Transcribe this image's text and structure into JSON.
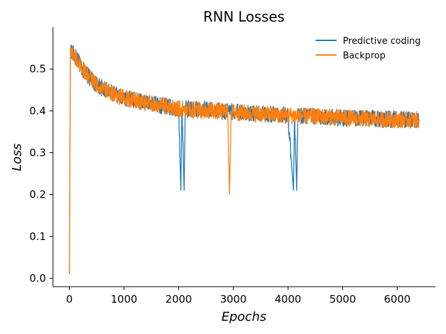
{
  "chart_data": {
    "type": "line",
    "title": "RNN Losses",
    "xlabel": "Epochs",
    "ylabel": "Loss",
    "xlim": [
      -300,
      6700
    ],
    "ylim": [
      -0.02,
      0.6
    ],
    "x_ticks": [
      0,
      1000,
      2000,
      3000,
      4000,
      5000,
      6000
    ],
    "x_tick_labels": [
      "0",
      "1000",
      "2000",
      "3000",
      "4000",
      "5000",
      "6000"
    ],
    "y_ticks": [
      0.0,
      0.1,
      0.2,
      0.3,
      0.4,
      0.5
    ],
    "y_tick_labels": [
      "0.0",
      "0.1",
      "0.2",
      "0.3",
      "0.4",
      "0.5"
    ],
    "grid": false,
    "legend_position": "top-right",
    "series": [
      {
        "name": "Predictive coding",
        "color": "#1f77b4",
        "x": [
          0,
          20,
          50,
          100,
          200,
          300,
          400,
          500,
          700,
          900,
          1200,
          1500,
          1800,
          2000,
          2040,
          2060,
          2100,
          2120,
          2300,
          2500,
          2800,
          3000,
          3300,
          3600,
          4000,
          4100,
          4120,
          4160,
          4180,
          4300,
          4600,
          5000,
          5400,
          5800,
          6100,
          6400
        ],
        "y": [
          0.01,
          0.55,
          0.54,
          0.53,
          0.51,
          0.49,
          0.475,
          0.462,
          0.447,
          0.435,
          0.425,
          0.417,
          0.41,
          0.405,
          0.21,
          0.405,
          0.21,
          0.405,
          0.405,
          0.405,
          0.398,
          0.398,
          0.395,
          0.392,
          0.39,
          0.21,
          0.39,
          0.21,
          0.39,
          0.388,
          0.386,
          0.383,
          0.382,
          0.38,
          0.379,
          0.378
        ],
        "noise_amplitude": 0.02
      },
      {
        "name": "Backprop",
        "color": "#ff7f0e",
        "x": [
          0,
          20,
          50,
          100,
          200,
          300,
          400,
          500,
          700,
          900,
          1200,
          1500,
          1800,
          2000,
          2300,
          2600,
          2900,
          2930,
          2960,
          3000,
          3300,
          3600,
          4000,
          4400,
          4800,
          5200,
          5600,
          6000,
          6400
        ],
        "y": [
          0.01,
          0.55,
          0.54,
          0.53,
          0.51,
          0.49,
          0.475,
          0.462,
          0.447,
          0.435,
          0.425,
          0.417,
          0.41,
          0.405,
          0.403,
          0.4,
          0.398,
          0.2,
          0.398,
          0.397,
          0.394,
          0.392,
          0.389,
          0.387,
          0.385,
          0.382,
          0.38,
          0.379,
          0.378
        ],
        "noise_amplitude": 0.02
      }
    ]
  }
}
